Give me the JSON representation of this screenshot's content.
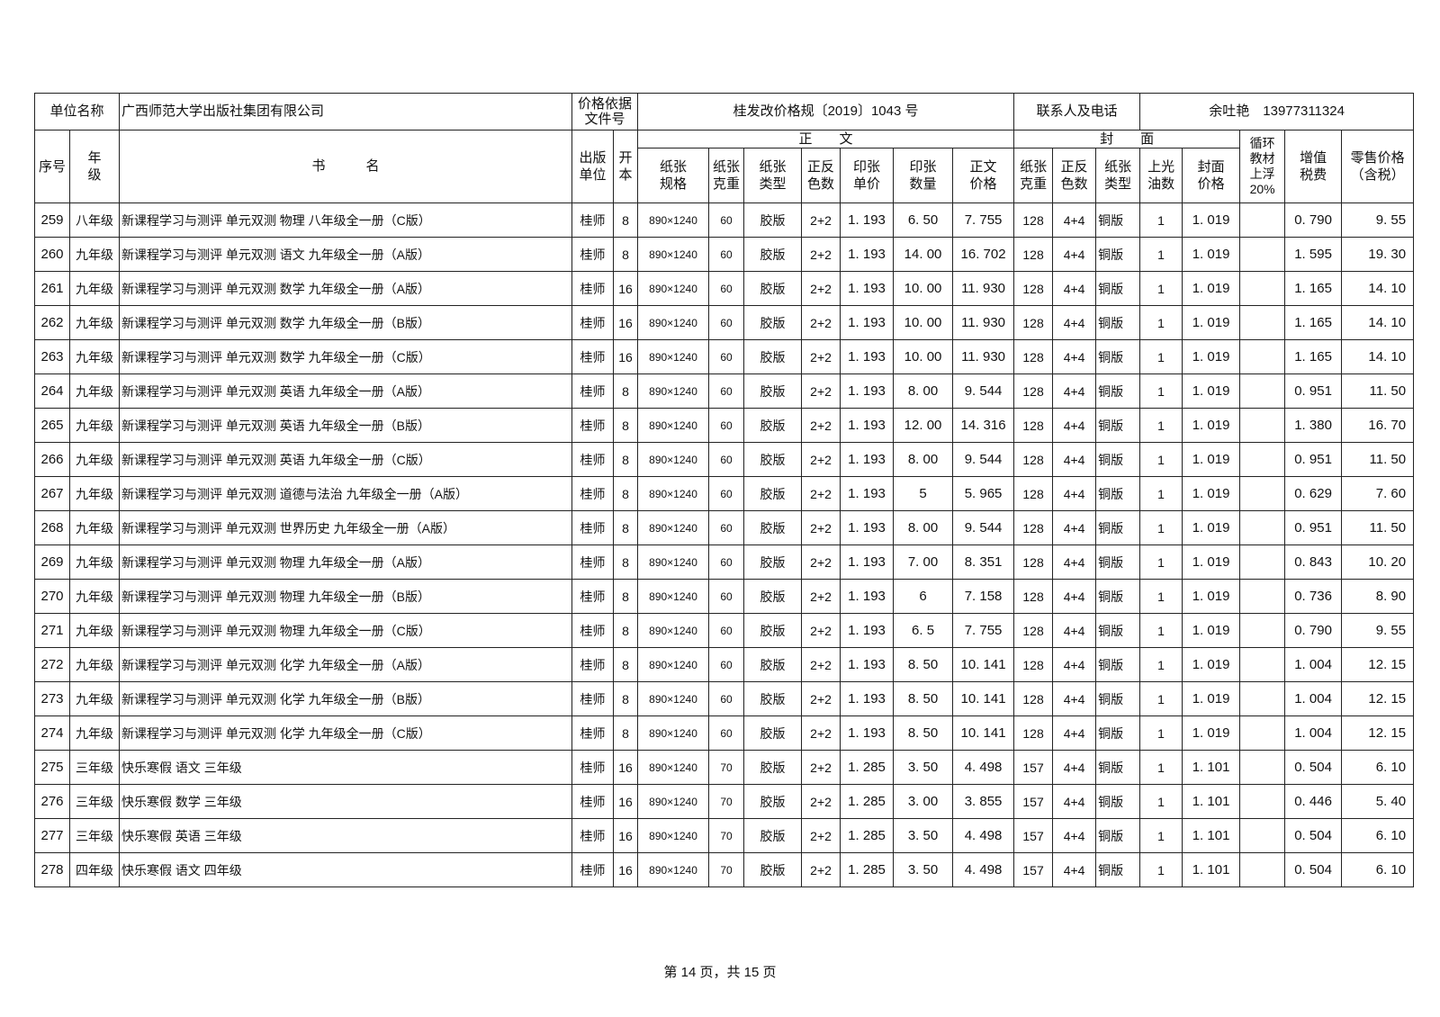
{
  "header": {
    "unit_label": "单位名称",
    "unit_value": "广西师范大学出版社集团有限公司",
    "price_basis_label": "价格依据文件号",
    "price_basis_value": "桂发改价格规〔2019〕1043 号",
    "contact_label": "联系人及电话",
    "contact_value": "余吐艳　13977311324"
  },
  "columns": {
    "seq": "序号",
    "grade": "年级",
    "title": "书　　　名",
    "publisher": "出版单位",
    "format": "开本",
    "body_group": "正　　文",
    "cover_group": "封　　面",
    "paper_size": "纸张规格",
    "paper_weight": "纸张克重",
    "paper_type": "纸张类型",
    "colors": "正反色数",
    "sheet_price": "印张单价",
    "sheet_count": "印张数量",
    "body_price": "正文价格",
    "cover_weight": "纸张克重",
    "cover_colors": "正反色数",
    "cover_type": "纸张类型",
    "varnish": "上光油数",
    "cover_price": "封面价格",
    "recycle": "循环教材上浮20%",
    "vat": "增值税费",
    "retail": "零售价格（含税）"
  },
  "rows": [
    [
      "259",
      "八年级",
      "新课程学习与测评  单元双测  物理  八年级全一册（C版）",
      "桂师",
      "8",
      "890×1240",
      "60",
      "胶版",
      "2+2",
      "1. 193",
      "6. 50",
      "7. 755",
      "128",
      "4+4",
      "铜版",
      "1",
      "1. 019",
      "",
      "0. 790",
      "9. 55"
    ],
    [
      "260",
      "九年级",
      "新课程学习与测评  单元双测  语文  九年级全一册（A版）",
      "桂师",
      "8",
      "890×1240",
      "60",
      "胶版",
      "2+2",
      "1. 193",
      "14. 00",
      "16. 702",
      "128",
      "4+4",
      "铜版",
      "1",
      "1. 019",
      "",
      "1. 595",
      "19. 30"
    ],
    [
      "261",
      "九年级",
      "新课程学习与测评  单元双测  数学  九年级全一册（A版）",
      "桂师",
      "16",
      "890×1240",
      "60",
      "胶版",
      "2+2",
      "1. 193",
      "10. 00",
      "11. 930",
      "128",
      "4+4",
      "铜版",
      "1",
      "1. 019",
      "",
      "1. 165",
      "14. 10"
    ],
    [
      "262",
      "九年级",
      "新课程学习与测评  单元双测  数学  九年级全一册（B版）",
      "桂师",
      "16",
      "890×1240",
      "60",
      "胶版",
      "2+2",
      "1. 193",
      "10. 00",
      "11. 930",
      "128",
      "4+4",
      "铜版",
      "1",
      "1. 019",
      "",
      "1. 165",
      "14. 10"
    ],
    [
      "263",
      "九年级",
      "新课程学习与测评  单元双测  数学  九年级全一册（C版）",
      "桂师",
      "16",
      "890×1240",
      "60",
      "胶版",
      "2+2",
      "1. 193",
      "10. 00",
      "11. 930",
      "128",
      "4+4",
      "铜版",
      "1",
      "1. 019",
      "",
      "1. 165",
      "14. 10"
    ],
    [
      "264",
      "九年级",
      "新课程学习与测评  单元双测  英语  九年级全一册（A版）",
      "桂师",
      "8",
      "890×1240",
      "60",
      "胶版",
      "2+2",
      "1. 193",
      "8. 00",
      "9. 544",
      "128",
      "4+4",
      "铜版",
      "1",
      "1. 019",
      "",
      "0. 951",
      "11. 50"
    ],
    [
      "265",
      "九年级",
      "新课程学习与测评  单元双测  英语  九年级全一册（B版）",
      "桂师",
      "8",
      "890×1240",
      "60",
      "胶版",
      "2+2",
      "1. 193",
      "12. 00",
      "14. 316",
      "128",
      "4+4",
      "铜版",
      "1",
      "1. 019",
      "",
      "1. 380",
      "16. 70"
    ],
    [
      "266",
      "九年级",
      "新课程学习与测评  单元双测  英语  九年级全一册（C版）",
      "桂师",
      "8",
      "890×1240",
      "60",
      "胶版",
      "2+2",
      "1. 193",
      "8. 00",
      "9. 544",
      "128",
      "4+4",
      "铜版",
      "1",
      "1. 019",
      "",
      "0. 951",
      "11. 50"
    ],
    [
      "267",
      "九年级",
      "新课程学习与测评  单元双测  道德与法治  九年级全一册（A版）",
      "桂师",
      "8",
      "890×1240",
      "60",
      "胶版",
      "2+2",
      "1. 193",
      "5",
      "5. 965",
      "128",
      "4+4",
      "铜版",
      "1",
      "1. 019",
      "",
      "0. 629",
      "7. 60"
    ],
    [
      "268",
      "九年级",
      "新课程学习与测评  单元双测  世界历史  九年级全一册（A版）",
      "桂师",
      "8",
      "890×1240",
      "60",
      "胶版",
      "2+2",
      "1. 193",
      "8. 00",
      "9. 544",
      "128",
      "4+4",
      "铜版",
      "1",
      "1. 019",
      "",
      "0. 951",
      "11. 50"
    ],
    [
      "269",
      "九年级",
      "新课程学习与测评  单元双测  物理  九年级全一册（A版）",
      "桂师",
      "8",
      "890×1240",
      "60",
      "胶版",
      "2+2",
      "1. 193",
      "7. 00",
      "8. 351",
      "128",
      "4+4",
      "铜版",
      "1",
      "1. 019",
      "",
      "0. 843",
      "10. 20"
    ],
    [
      "270",
      "九年级",
      "新课程学习与测评  单元双测  物理  九年级全一册（B版）",
      "桂师",
      "8",
      "890×1240",
      "60",
      "胶版",
      "2+2",
      "1. 193",
      "6",
      "7. 158",
      "128",
      "4+4",
      "铜版",
      "1",
      "1. 019",
      "",
      "0. 736",
      "8. 90"
    ],
    [
      "271",
      "九年级",
      "新课程学习与测评  单元双测  物理  九年级全一册（C版）",
      "桂师",
      "8",
      "890×1240",
      "60",
      "胶版",
      "2+2",
      "1. 193",
      "6. 5",
      "7. 755",
      "128",
      "4+4",
      "铜版",
      "1",
      "1. 019",
      "",
      "0. 790",
      "9. 55"
    ],
    [
      "272",
      "九年级",
      "新课程学习与测评  单元双测  化学  九年级全一册（A版）",
      "桂师",
      "8",
      "890×1240",
      "60",
      "胶版",
      "2+2",
      "1. 193",
      "8. 50",
      "10. 141",
      "128",
      "4+4",
      "铜版",
      "1",
      "1. 019",
      "",
      "1. 004",
      "12. 15"
    ],
    [
      "273",
      "九年级",
      "新课程学习与测评  单元双测  化学  九年级全一册（B版）",
      "桂师",
      "8",
      "890×1240",
      "60",
      "胶版",
      "2+2",
      "1. 193",
      "8. 50",
      "10. 141",
      "128",
      "4+4",
      "铜版",
      "1",
      "1. 019",
      "",
      "1. 004",
      "12. 15"
    ],
    [
      "274",
      "九年级",
      "新课程学习与测评  单元双测  化学  九年级全一册（C版）",
      "桂师",
      "8",
      "890×1240",
      "60",
      "胶版",
      "2+2",
      "1. 193",
      "8. 50",
      "10. 141",
      "128",
      "4+4",
      "铜版",
      "1",
      "1. 019",
      "",
      "1. 004",
      "12. 15"
    ],
    [
      "275",
      "三年级",
      "快乐寒假  语文    三年级",
      "桂师",
      "16",
      "890×1240",
      "70",
      "胶版",
      "2+2",
      "1. 285",
      "3. 50",
      "4. 498",
      "157",
      "4+4",
      "铜版",
      "1",
      "1. 101",
      "",
      "0. 504",
      "6. 10"
    ],
    [
      "276",
      "三年级",
      "快乐寒假  数学    三年级",
      "桂师",
      "16",
      "890×1240",
      "70",
      "胶版",
      "2+2",
      "1. 285",
      "3. 00",
      "3. 855",
      "157",
      "4+4",
      "铜版",
      "1",
      "1. 101",
      "",
      "0. 446",
      "5. 40"
    ],
    [
      "277",
      "三年级",
      "快乐寒假  英语    三年级",
      "桂师",
      "16",
      "890×1240",
      "70",
      "胶版",
      "2+2",
      "1. 285",
      "3. 50",
      "4. 498",
      "157",
      "4+4",
      "铜版",
      "1",
      "1. 101",
      "",
      "0. 504",
      "6. 10"
    ],
    [
      "278",
      "四年级",
      "快乐寒假  语文    四年级",
      "桂师",
      "16",
      "890×1240",
      "70",
      "胶版",
      "2+2",
      "1. 285",
      "3. 50",
      "4. 498",
      "157",
      "4+4",
      "铜版",
      "1",
      "1. 101",
      "",
      "0. 504",
      "6. 10"
    ]
  ],
  "footer": {
    "page_text": "第 14 页，共 15 页"
  }
}
